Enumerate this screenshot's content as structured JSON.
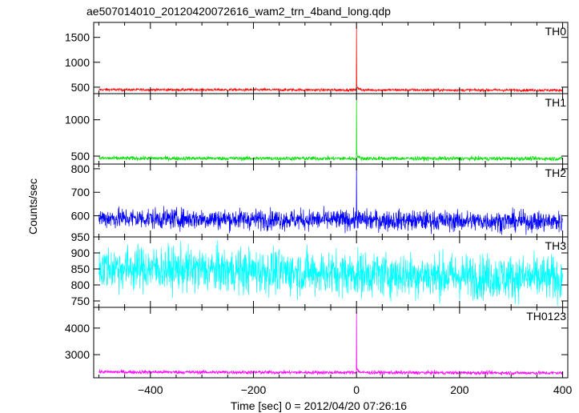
{
  "chart_data": {
    "type": "line",
    "title": "ae507014010_20120420072616_wam2_trn_4band_long.qdp",
    "xlabel": "Time [sec] 0 = 2012/04/20 07:26:16",
    "ylabel": "Counts/sec",
    "xlim": [
      -510,
      410
    ],
    "xticks": [
      "−400",
      "−200",
      "0",
      "200",
      "400"
    ],
    "xtick_values": [
      -400,
      -200,
      0,
      200,
      400
    ],
    "grid": false,
    "panels": [
      {
        "name": "TH0",
        "color": "#ff0000",
        "ylim": [
          370,
          1800
        ],
        "yticks": [
          "500",
          "1000",
          "1500"
        ],
        "ytick_values": [
          500,
          1000,
          1500
        ],
        "baseline": 445,
        "noise": 14,
        "spike": {
          "x": 0,
          "y": 1800
        },
        "series": {
          "x_range": [
            -500,
            400
          ],
          "step": 0.5,
          "level_at_start": 450,
          "level_at_end": 440
        }
      },
      {
        "name": "TH1",
        "color": "#00e000",
        "ylim": [
          390,
          1360
        ],
        "yticks": [
          "500",
          "1000"
        ],
        "ytick_values": [
          500,
          1000
        ],
        "baseline": 470,
        "noise": 14,
        "spike": {
          "x": 0,
          "y": 1360
        },
        "series": {
          "x_range": [
            -500,
            400
          ],
          "step": 0.5,
          "level_at_start": 470,
          "level_at_end": 465
        }
      },
      {
        "name": "TH2",
        "color": "#0000ff",
        "ylim": [
          510,
          820
        ],
        "yticks": [
          "600",
          "700",
          "800"
        ],
        "ytick_values": [
          600,
          700,
          800
        ],
        "baseline": 585,
        "noise": 22,
        "spike": {
          "x": 0,
          "y": 820
        },
        "series": {
          "x_range": [
            -500,
            400
          ],
          "step": 0.5,
          "level_at_start": 590,
          "level_at_end": 575
        }
      },
      {
        "name": "TH3",
        "color": "#00ffff",
        "ylim": [
          730,
          950
        ],
        "yticks": [
          "750",
          "800",
          "850",
          "900",
          "950"
        ],
        "ytick_values": [
          750,
          800,
          850,
          900,
          950
        ],
        "baseline": 840,
        "noise": 35,
        "spike": null,
        "series": {
          "x_range": [
            -500,
            400
          ],
          "step": 0.5,
          "level_at_start": 855,
          "level_at_end": 820
        }
      },
      {
        "name": "TH0123",
        "color": "#ff00ff",
        "ylim": [
          2130,
          4780
        ],
        "yticks": [
          "3000",
          "4000"
        ],
        "ytick_values": [
          3000,
          4000
        ],
        "baseline": 2330,
        "noise": 35,
        "spike": {
          "x": 0,
          "y": 4780
        },
        "series": {
          "x_range": [
            -500,
            400
          ],
          "step": 0.5,
          "level_at_start": 2350,
          "level_at_end": 2310
        }
      }
    ]
  }
}
